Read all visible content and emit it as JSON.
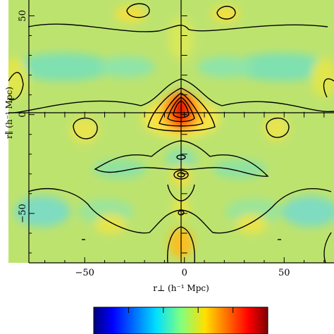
{
  "chart_data": {
    "type": "heatmap",
    "title": "",
    "xlabel": "r⊥ (h⁻¹ Mpc)",
    "ylabel": "r∥ (h⁻¹ Mpc)",
    "xlim": [
      -78,
      75
    ],
    "ylim": [
      -75,
      58
    ],
    "x_ticks": [
      -50,
      0,
      50
    ],
    "y_ticks": [
      50,
      0,
      -50
    ],
    "x_tick_labels": [
      "−50",
      "0",
      "50"
    ],
    "y_tick_labels": [
      "50",
      "0",
      "−50"
    ],
    "colormap": "jet",
    "colorbar_ticks": 4,
    "description_values": {
      "background": 0.45,
      "peak": {
        "x": 0,
        "y": 3,
        "value": 1.0
      },
      "contour_levels": [
        0.5,
        0.62,
        0.74,
        0.86
      ]
    }
  }
}
